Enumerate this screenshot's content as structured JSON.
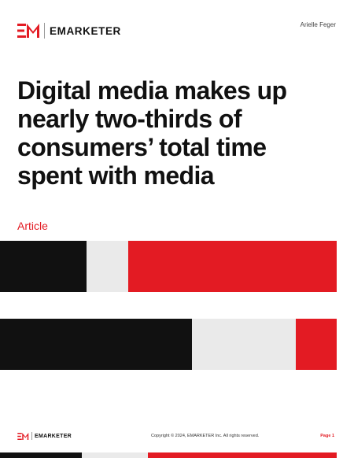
{
  "header": {
    "brand": "EMARKETER",
    "author": "Arielle Feger"
  },
  "main": {
    "title": "Digital media makes up nearly two-thirds of consumers’ total time spent with media",
    "content_type": "Article"
  },
  "footer": {
    "brand": "EMARKETER",
    "copyright": "Copyright © 2024, EMARKETER Inc. All rights reserved.",
    "page": "Page 1"
  },
  "colors": {
    "accent_red": "#e31b23",
    "black": "#111111",
    "light_gray": "#eaeaea"
  }
}
